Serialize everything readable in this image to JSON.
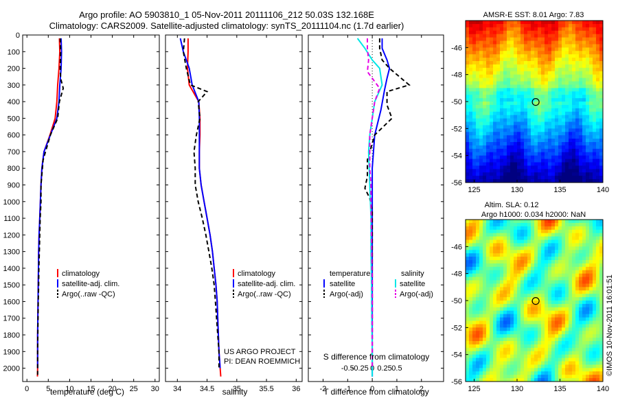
{
  "figure": {
    "title_line1": "Argo profile: AO 5903810_1 05-Nov-2011 20111106_212 50.03S 132.168E",
    "title_line2": "Climatology: CARS2009. Satellite-adjusted climatology: synTS_20111104.nc (1.7d earlier)",
    "credit": "©IMOS 10-Nov-2011 16:01:51",
    "project_line1": "US ARGO PROJECT",
    "project_line2": "PI: DEAN ROEMMICH"
  },
  "colors": {
    "climatology": "#ff0000",
    "satellite": "#0000ff",
    "argo": "#000000",
    "satellite_salinity": "#00e6e6",
    "argo_salinity": "#e600e6"
  },
  "chart_data": [
    {
      "type": "line",
      "panel": "temperature",
      "xlabel": "temperature (deg C)",
      "ylabel": "",
      "xlim": [
        -1,
        31
      ],
      "ylim": [
        2080,
        0
      ],
      "xticks": [
        0,
        5,
        10,
        15,
        20,
        25,
        30
      ],
      "yticks": [
        0,
        100,
        200,
        300,
        400,
        500,
        600,
        700,
        800,
        900,
        1000,
        1100,
        1200,
        1300,
        1400,
        1500,
        1600,
        1700,
        1800,
        1900,
        2000
      ],
      "legend": [
        "climatology",
        "satellite-adj. clim.",
        "Argo(..raw -QC)"
      ],
      "legend_position": "lower-right",
      "series": [
        {
          "name": "climatology",
          "style": "solid",
          "color": "#ff0000",
          "x": [
            7.6,
            7.7,
            7.5,
            7.2,
            7.0,
            6.6,
            5.4,
            4.0,
            3.5,
            3.3,
            3.15,
            3.0,
            2.85,
            2.75,
            2.7,
            2.65,
            2.6,
            2.55,
            2.5,
            2.5,
            2.5,
            2.45
          ],
          "y": [
            20,
            100,
            200,
            300,
            400,
            500,
            600,
            700,
            800,
            900,
            1000,
            1100,
            1200,
            1300,
            1400,
            1500,
            1600,
            1700,
            1800,
            1900,
            2000,
            2050
          ]
        },
        {
          "name": "satellite-adj. clim.",
          "style": "solid",
          "color": "#0000ff",
          "x": [
            8.0,
            8.1,
            8.0,
            7.7,
            7.5,
            7.0,
            5.5,
            4.0,
            3.5,
            3.3,
            3.15,
            3.0,
            2.85,
            2.75,
            2.7,
            2.65,
            2.6,
            2.55,
            2.5,
            2.5,
            2.5
          ],
          "y": [
            20,
            100,
            200,
            300,
            400,
            500,
            600,
            700,
            800,
            900,
            1000,
            1100,
            1200,
            1300,
            1400,
            1500,
            1600,
            1700,
            1800,
            1900,
            2000
          ]
        },
        {
          "name": "Argo(..raw -QC)",
          "style": "dashed",
          "color": "#000000",
          "x": [
            7.8,
            7.9,
            7.8,
            7.9,
            8.5,
            7.6,
            7.2,
            5.5,
            3.8,
            3.3,
            3.3,
            3.1,
            3.0,
            2.9,
            2.8,
            2.75,
            2.65,
            2.6,
            2.55,
            2.5,
            2.5,
            2.5
          ],
          "y": [
            20,
            100,
            200,
            260,
            320,
            400,
            500,
            600,
            750,
            900,
            1000,
            1100,
            1200,
            1300,
            1400,
            1500,
            1600,
            1700,
            1800,
            1900,
            2000,
            2040
          ]
        }
      ]
    },
    {
      "type": "line",
      "panel": "salinity",
      "xlabel": "salinity",
      "ylabel": "",
      "xlim": [
        33.8,
        36.1
      ],
      "ylim": [
        2080,
        0
      ],
      "xticks": [
        34,
        34.5,
        35,
        35.5,
        36
      ],
      "xtick_labels": [
        "34",
        "34.5",
        "35",
        "35.5",
        "36"
      ],
      "legend": [
        "climatology",
        "satellite-adj. clim.",
        "Argo(..raw -QC)"
      ],
      "legend_position": "lower-right",
      "series": [
        {
          "name": "climatology",
          "style": "solid",
          "color": "#ff0000",
          "x": [
            34.18,
            34.18,
            34.17,
            34.2,
            34.36,
            34.38,
            34.38,
            34.37,
            34.37,
            34.4,
            34.45,
            34.5,
            34.55,
            34.59,
            34.62,
            34.65,
            34.67,
            34.68,
            34.69,
            34.7,
            34.72,
            34.73
          ],
          "y": [
            20,
            100,
            200,
            300,
            400,
            500,
            600,
            700,
            800,
            900,
            1000,
            1100,
            1200,
            1300,
            1400,
            1500,
            1600,
            1700,
            1800,
            1900,
            2000,
            2050
          ]
        },
        {
          "name": "satellite-adj. clim.",
          "style": "solid",
          "color": "#0000ff",
          "x": [
            34.05,
            34.1,
            34.2,
            34.25,
            34.36,
            34.37,
            34.37,
            34.37,
            34.37,
            34.4,
            34.45,
            34.5,
            34.55,
            34.59,
            34.62,
            34.65,
            34.67,
            34.68,
            34.69,
            34.7,
            34.72
          ],
          "y": [
            20,
            100,
            200,
            300,
            400,
            500,
            600,
            700,
            800,
            900,
            1000,
            1100,
            1200,
            1300,
            1400,
            1500,
            1600,
            1700,
            1800,
            1900,
            2000
          ]
        },
        {
          "name": "Argo(..raw -QC)",
          "style": "dashed",
          "color": "#000000",
          "x": [
            34.12,
            34.1,
            34.15,
            34.22,
            34.5,
            34.35,
            34.38,
            34.32,
            34.28,
            34.3,
            34.3,
            34.35,
            34.42,
            34.48,
            34.53,
            34.58,
            34.62,
            34.64,
            34.66,
            34.68,
            34.7,
            34.7
          ],
          "y": [
            20,
            100,
            200,
            300,
            340,
            400,
            500,
            600,
            700,
            800,
            900,
            1000,
            1100,
            1200,
            1300,
            1400,
            1500,
            1600,
            1700,
            1800,
            1900,
            2000
          ]
        }
      ]
    },
    {
      "type": "line",
      "panel": "difference",
      "xlabel": "T difference from climatology",
      "xlabel_top": "S difference from climatology",
      "ylabel": "",
      "xlim": [
        -2.6,
        2.9
      ],
      "ylim": [
        2080,
        0
      ],
      "xticks": [
        -2,
        -1,
        0,
        1,
        2
      ],
      "xtick_labels": [
        "-2",
        "-1",
        "0",
        "1",
        "2"
      ],
      "s_ticks": [
        "-0.5",
        "-0.25",
        "0",
        "0.25",
        "0.5"
      ],
      "legend_temperature_title": "temperature",
      "legend_salinity_title": "salinity",
      "legend": [
        "satellite",
        "Argo(-adj)",
        "satellite",
        "Argo(-adj)"
      ],
      "legend_position": "lower-center",
      "series": [
        {
          "name": "satellite",
          "group": "temperature",
          "style": "solid",
          "color": "#0000ff",
          "x": [
            0.4,
            0.4,
            0.6,
            0.7,
            0.6,
            0.5,
            0.35,
            0.1,
            0.0,
            0.0,
            0.0,
            0.0,
            0.0,
            0.0,
            0.0,
            0.0,
            0.0,
            0.0,
            0.0,
            0.0,
            0.0
          ],
          "y": [
            20,
            80,
            150,
            200,
            260,
            330,
            450,
            600,
            800,
            1000,
            1100,
            1200,
            1300,
            1400,
            1500,
            1600,
            1700,
            1800,
            1900,
            2000,
            2050
          ]
        },
        {
          "name": "Argo(-adj)",
          "group": "temperature",
          "style": "dashed",
          "color": "#000000",
          "x": [
            0.3,
            0.3,
            0.4,
            0.7,
            1.5,
            0.6,
            0.6,
            0.8,
            0.1,
            -0.2,
            -0.2,
            -0.3,
            -0.1,
            0.0,
            0.0,
            0.0,
            0.0
          ],
          "y": [
            20,
            80,
            150,
            200,
            300,
            340,
            420,
            500,
            600,
            750,
            850,
            920,
            980,
            1050,
            1200,
            1500,
            2000
          ]
        },
        {
          "name": "satellite",
          "group": "salinity",
          "style": "solid",
          "color": "#00e6e6",
          "x": [
            -0.6,
            -0.3,
            0.0,
            0.3,
            0.4,
            0.1,
            0.0,
            -0.1,
            -0.15,
            -0.1,
            -0.05,
            -0.05,
            -0.03,
            -0.02,
            0.0,
            0.0,
            0.0
          ],
          "y": [
            20,
            80,
            150,
            200,
            300,
            400,
            500,
            600,
            700,
            900,
            1100,
            1300,
            1500,
            1700,
            1900,
            2000,
            2050
          ]
        },
        {
          "name": "Argo(-adj)",
          "group": "salinity",
          "style": "dashed",
          "color": "#e600e6",
          "x": [
            -0.2,
            -0.2,
            -0.15,
            -0.2,
            0.3,
            0.1,
            0.0,
            -0.1,
            -0.1,
            -0.1,
            -0.05,
            -0.05,
            0.0,
            0.0
          ],
          "y": [
            20,
            80,
            150,
            220,
            320,
            400,
            500,
            600,
            700,
            800,
            900,
            1000,
            1500,
            2000
          ]
        }
      ]
    },
    {
      "type": "heatmap",
      "panel": "sst_map",
      "title": "AMSR-E SST: 8.01 Argo: 7.83",
      "xlim": [
        124,
        140
      ],
      "ylim": [
        -56,
        -44
      ],
      "xticks": [
        125,
        130,
        135,
        140
      ],
      "yticks": [
        -46,
        -48,
        -50,
        -52,
        -54,
        -56
      ],
      "colormap": "jet",
      "marker": {
        "lon": 132.17,
        "lat": -50.03,
        "shape": "circle"
      }
    },
    {
      "type": "heatmap",
      "panel": "sla_map",
      "title_line1": "Altim. SLA: 0.12",
      "title_line2": "Argo h1000: 0.034 h2000: NaN",
      "xlim": [
        124,
        140
      ],
      "ylim": [
        -56,
        -44
      ],
      "xticks": [
        125,
        130,
        135,
        140
      ],
      "yticks": [
        -46,
        -48,
        -50,
        -52,
        -54,
        -56
      ],
      "colormap": "jet",
      "marker": {
        "lon": 132.17,
        "lat": -50.03,
        "shape": "circle"
      }
    }
  ]
}
